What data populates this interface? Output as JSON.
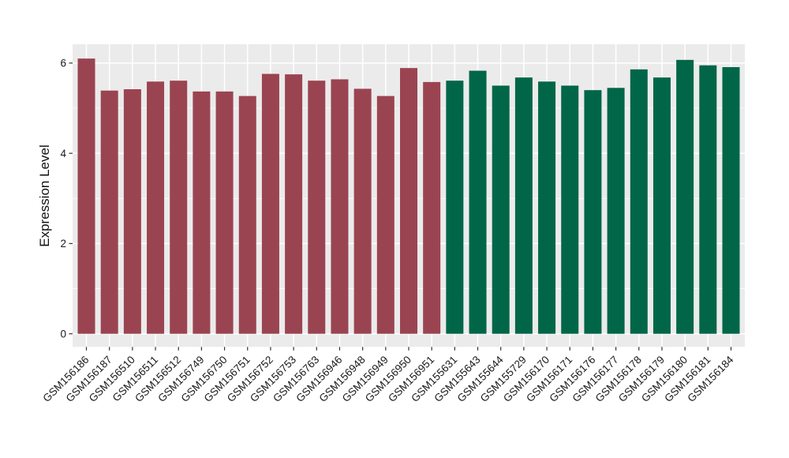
{
  "figure": {
    "background": "#FFFFFF"
  },
  "chart_data": {
    "type": "bar",
    "title": "",
    "xlabel": "",
    "ylabel": "Expression Level",
    "ylim": [
      -0.3,
      6.42
    ],
    "ytick_labels": [
      "0",
      "2",
      "4",
      "6"
    ],
    "ytick_values": [
      0,
      2,
      4,
      6
    ],
    "yminor_values": [
      1,
      3,
      5
    ],
    "grid": true,
    "legend": false,
    "panel_bg": "#EBEBEB",
    "grid_color": "#FFFFFF",
    "tick_mark_color": "#333333",
    "tick_text_color": "#1A1A1A",
    "group_colors": {
      "group1_maroon": "#9B4451",
      "group2_green": "#016648"
    },
    "categories": [
      "GSM156186",
      "GSM156187",
      "GSM156510",
      "GSM156511",
      "GSM156512",
      "GSM156749",
      "GSM156750",
      "GSM156751",
      "GSM156752",
      "GSM156753",
      "GSM156763",
      "GSM156946",
      "GSM156948",
      "GSM156949",
      "GSM156950",
      "GSM156951",
      "GSM155631",
      "GSM155643",
      "GSM155644",
      "GSM155729",
      "GSM156170",
      "GSM156171",
      "GSM156176",
      "GSM156177",
      "GSM156178",
      "GSM156179",
      "GSM156180",
      "GSM156181",
      "GSM156184"
    ],
    "values": [
      6.1,
      5.39,
      5.42,
      5.59,
      5.61,
      5.37,
      5.37,
      5.27,
      5.76,
      5.75,
      5.61,
      5.64,
      5.43,
      5.27,
      5.89,
      5.58,
      5.61,
      5.83,
      5.5,
      5.68,
      5.59,
      5.5,
      5.4,
      5.45,
      5.86,
      5.68,
      6.07,
      5.95,
      5.91
    ],
    "colors": [
      "#9B4451",
      "#9B4451",
      "#9B4451",
      "#9B4451",
      "#9B4451",
      "#9B4451",
      "#9B4451",
      "#9B4451",
      "#9B4451",
      "#9B4451",
      "#9B4451",
      "#9B4451",
      "#9B4451",
      "#9B4451",
      "#9B4451",
      "#9B4451",
      "#016648",
      "#016648",
      "#016648",
      "#016648",
      "#016648",
      "#016648",
      "#016648",
      "#016648",
      "#016648",
      "#016648",
      "#016648",
      "#016648",
      "#016648"
    ]
  }
}
